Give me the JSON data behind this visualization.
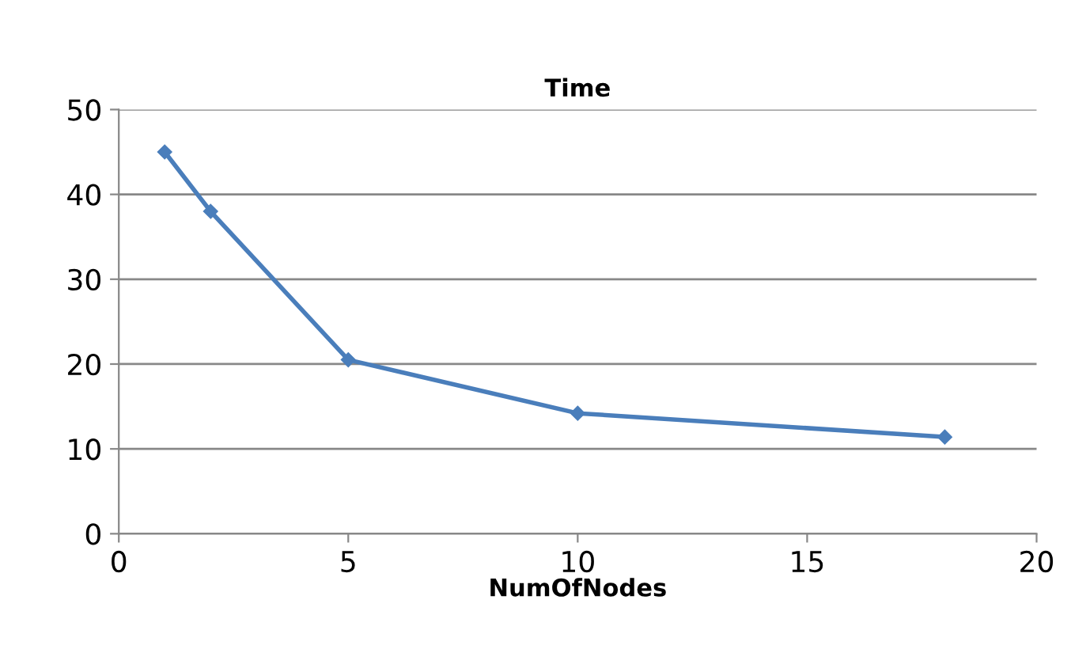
{
  "chart_data": {
    "type": "line",
    "title": "Time",
    "xlabel": "NumOfNodes",
    "series": [
      {
        "color": "#4a7ebb",
        "x": [
          1,
          2,
          5,
          10,
          18
        ],
        "values": [
          45,
          38,
          20.5,
          14.2,
          11.4
        ]
      }
    ],
    "xlim": [
      0,
      20
    ],
    "xticks": [
      0,
      5,
      10,
      15,
      20
    ],
    "ylim": [
      0,
      50
    ],
    "yticks": [
      0,
      10,
      20,
      30,
      40,
      50
    ],
    "grid": "y",
    "marker": "diamond",
    "line_style": "solid",
    "legend": false
  }
}
